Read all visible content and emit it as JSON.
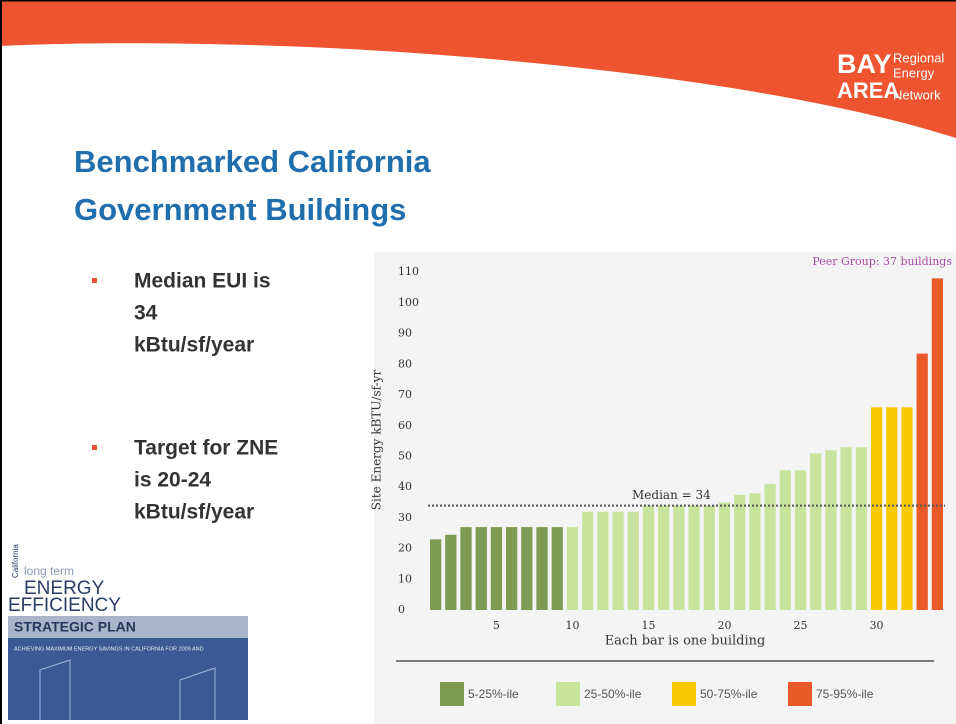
{
  "slide": {
    "title_lines": [
      "Benchmarked California",
      "Government Buildings"
    ],
    "bullets": [
      [
        "Median EUI is",
        "34",
        "kBtu/sf/year"
      ],
      [
        "Target for ZNE",
        "is 20-24",
        "kBtu/sf/year"
      ]
    ],
    "logo": {
      "big": [
        "BAY",
        "AREA"
      ],
      "small": [
        "Regional",
        "Energy",
        "Network"
      ]
    },
    "cover": {
      "side": "California",
      "top": "long term",
      "lines": [
        "ENERGY",
        "EFFICIENCY"
      ],
      "band": "STRATEGIC PLAN",
      "strip": "ACHIEVING MAXIMUM ENERGY SAVINGS IN CALIFORNIA FOR 2009 AND"
    }
  },
  "chart_data": {
    "type": "bar",
    "x_label": "Each bar is one building",
    "y_label": "Site Energy kBTU/sf-yr",
    "annotation": "Peer Group: 37 buildings",
    "median": 34,
    "median_label": "Median = 34",
    "categories": [
      1,
      2,
      3,
      4,
      5,
      6,
      7,
      8,
      9,
      10,
      11,
      12,
      13,
      14,
      15,
      16,
      17,
      18,
      19,
      20,
      21,
      22,
      23,
      24,
      25,
      26,
      27,
      28,
      29,
      30,
      31,
      32,
      33,
      34
    ],
    "series": [
      {
        "name": "5-25%-ile",
        "color": "#7d9b52",
        "values": [
          23,
          24.5,
          27,
          27,
          27,
          27,
          27,
          27,
          27,
          null,
          null,
          null,
          null,
          null,
          null,
          null,
          null,
          null,
          null,
          null,
          null,
          null,
          null,
          null,
          null,
          null,
          null,
          null,
          null,
          null,
          null,
          null,
          null,
          null
        ]
      },
      {
        "name": "25-50%-ile",
        "color": "#c7e39c",
        "values": [
          null,
          null,
          null,
          null,
          null,
          null,
          null,
          null,
          null,
          27,
          32,
          32,
          32,
          32,
          34,
          34,
          34,
          34,
          34,
          35,
          37.5,
          38,
          41,
          45.5,
          45.5,
          51,
          52,
          53,
          53,
          null,
          null,
          null,
          null,
          null
        ]
      },
      {
        "name": "50-75%-ile",
        "color": "#f6c800",
        "values": [
          null,
          null,
          null,
          null,
          null,
          null,
          null,
          null,
          null,
          null,
          null,
          null,
          null,
          null,
          null,
          null,
          null,
          null,
          null,
          null,
          null,
          null,
          null,
          null,
          null,
          null,
          null,
          null,
          null,
          66,
          66,
          66,
          null,
          null
        ]
      },
      {
        "name": "75-95%-ile",
        "color": "#ea5a28",
        "values": [
          null,
          null,
          null,
          null,
          null,
          null,
          null,
          null,
          null,
          null,
          null,
          null,
          null,
          null,
          null,
          null,
          null,
          null,
          null,
          null,
          null,
          null,
          null,
          null,
          null,
          null,
          null,
          null,
          null,
          null,
          null,
          null,
          83.5,
          108
        ]
      }
    ],
    "xlim": [
      0.5,
      34.5
    ],
    "xticks": [
      5,
      10,
      15,
      20,
      25,
      30
    ],
    "ylim": [
      0,
      113
    ],
    "yticks": [
      0,
      10,
      20,
      30,
      40,
      50,
      60,
      70,
      80,
      90,
      100,
      110
    ]
  }
}
